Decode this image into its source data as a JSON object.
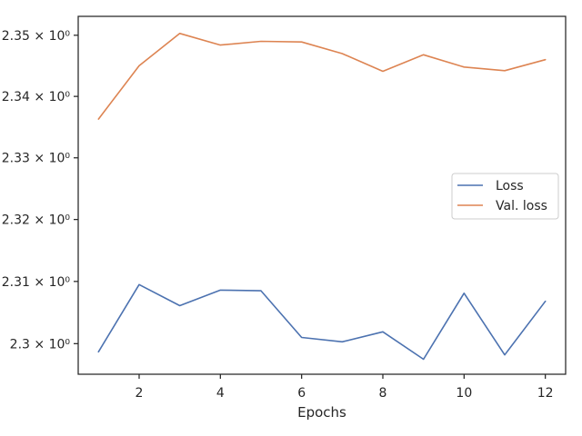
{
  "chart_data": {
    "type": "line",
    "title": "",
    "xlabel": "Epochs",
    "ylabel": "",
    "yscale": "log",
    "grid": false,
    "legend_position": "center-right",
    "xlim": [
      0.5,
      12.5
    ],
    "ylim": [
      2.2951,
      2.3531
    ],
    "x_ticks": [
      2,
      4,
      6,
      8,
      10,
      12
    ],
    "y_ticks": [
      2.3,
      2.31,
      2.32,
      2.33,
      2.34,
      2.35
    ],
    "y_tick_labels": [
      "2.3 × 10⁰",
      "2.31 × 10⁰",
      "2.32 × 10⁰",
      "2.33 × 10⁰",
      "2.34 × 10⁰",
      "2.35 × 10⁰"
    ],
    "x": [
      1,
      2,
      3,
      4,
      5,
      6,
      7,
      8,
      9,
      10,
      11,
      12
    ],
    "series": [
      {
        "name": "Loss",
        "color": "#4c72b0",
        "values": [
          2.2987,
          2.3095,
          2.3061,
          2.3086,
          2.3085,
          2.301,
          2.3003,
          2.3019,
          2.2975,
          2.3081,
          2.2982,
          2.3068
        ]
      },
      {
        "name": "Val. loss",
        "color": "#dd8452",
        "values": [
          2.3363,
          2.345,
          2.3503,
          2.3484,
          2.349,
          2.3489,
          2.347,
          2.3441,
          2.3468,
          2.3448,
          2.3442,
          2.346
        ]
      }
    ]
  }
}
